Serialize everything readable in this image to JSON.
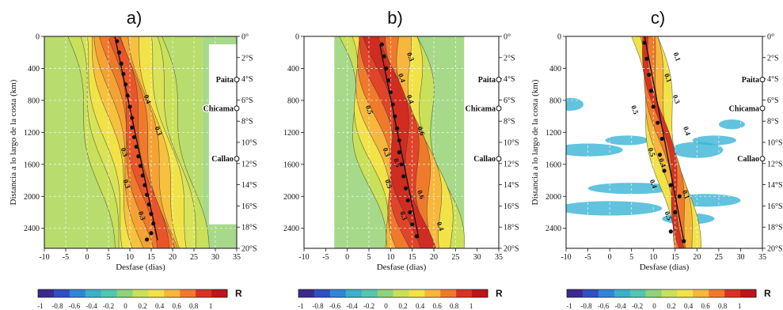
{
  "figure": {
    "colorbar": {
      "label": "R",
      "ticks": [
        "-1",
        "-0.8",
        "-0.6",
        "-0.4",
        "-0.2",
        "0",
        "0.2",
        "0.4",
        "0.6",
        "0.8",
        "1"
      ],
      "colors": [
        "#3b2a8f",
        "#2f50c2",
        "#2f86d6",
        "#3bb0c8",
        "#52c6b0",
        "#8fd27a",
        "#c8e05a",
        "#f1e248",
        "#f6b73c",
        "#f07a2c",
        "#d83222",
        "#c0141a"
      ]
    },
    "cities": [
      "Paita",
      "Chicama",
      "Callao"
    ]
  },
  "chart_data": [
    {
      "type": "heatmap",
      "title": "a)",
      "xlabel": "Desfase (dias)",
      "ylabel": "Distancia a lo largo de la costa (km)",
      "xlim": [
        -10,
        35
      ],
      "ylim": [
        2650,
        0
      ],
      "xticks": [
        "-10",
        "-5",
        "0",
        "5",
        "10",
        "15",
        "20",
        "25",
        "30",
        "35"
      ],
      "yticks": [
        "0",
        "400",
        "800",
        "1200",
        "1600",
        "2000",
        "2400"
      ],
      "right_ticks": [
        "0°",
        "2°S",
        "4°S",
        "6°S",
        "8°S",
        "10°S",
        "12°S",
        "14°S",
        "16°S",
        "18°S",
        "20°S"
      ],
      "contour_labels": [
        "0.3",
        "0.4",
        "0.3",
        "0.3",
        "0.3"
      ],
      "max_lag_points": [
        {
          "x": 7,
          "y": 60
        },
        {
          "x": 7.5,
          "y": 200
        },
        {
          "x": 8,
          "y": 340
        },
        {
          "x": 8.5,
          "y": 470
        },
        {
          "x": 9,
          "y": 600
        },
        {
          "x": 9.5,
          "y": 740
        },
        {
          "x": 10,
          "y": 880
        },
        {
          "x": 10.5,
          "y": 1020
        },
        {
          "x": 10.5,
          "y": 1140
        },
        {
          "x": 11,
          "y": 1260
        },
        {
          "x": 11.5,
          "y": 1380
        },
        {
          "x": 12,
          "y": 1500
        },
        {
          "x": 12.5,
          "y": 1620
        },
        {
          "x": 13,
          "y": 1740
        },
        {
          "x": 13.5,
          "y": 1860
        },
        {
          "x": 14,
          "y": 1980
        },
        {
          "x": 14.5,
          "y": 2100
        },
        {
          "x": 15,
          "y": 2220
        },
        {
          "x": 15.5,
          "y": 2340
        },
        {
          "x": 15,
          "y": 2460
        },
        {
          "x": 14,
          "y": 2540
        }
      ],
      "fit_line": [
        {
          "x": 6.5,
          "y": 0
        },
        {
          "x": 16.5,
          "y": 2550
        }
      ]
    },
    {
      "type": "heatmap",
      "title": "b)",
      "xlabel": "Desfase (dias)",
      "ylabel": "",
      "xlim": [
        -10,
        35
      ],
      "ylim": [
        2650,
        0
      ],
      "xticks": [
        "-10",
        "-5",
        "0",
        "5",
        "10",
        "15",
        "20",
        "25",
        "30",
        "35"
      ],
      "yticks": [
        "0",
        "400",
        "800",
        "1200",
        "1600",
        "2000",
        "2400"
      ],
      "right_ticks": [
        "0°",
        "2°S",
        "4°S",
        "6°S",
        "8°S",
        "10°S",
        "12°S",
        "14°S",
        "16°S",
        "18°S",
        "20°S"
      ],
      "contour_labels": [
        "0.3",
        "0.4",
        "0.5",
        "0.6",
        "0.3",
        "0.4",
        "0.5",
        "0.6",
        "0.3",
        "0.5",
        "0.4"
      ],
      "max_lag_points": [
        {
          "x": 8,
          "y": 100
        },
        {
          "x": 8.5,
          "y": 250
        },
        {
          "x": 9,
          "y": 400
        },
        {
          "x": 9.5,
          "y": 550
        },
        {
          "x": 10,
          "y": 700
        },
        {
          "x": 10.5,
          "y": 850
        },
        {
          "x": 11,
          "y": 1000
        },
        {
          "x": 11.5,
          "y": 1150
        },
        {
          "x": 12,
          "y": 1300
        },
        {
          "x": 12,
          "y": 1450
        },
        {
          "x": 12.5,
          "y": 1600
        },
        {
          "x": 13,
          "y": 1750
        },
        {
          "x": 13.5,
          "y": 1900
        },
        {
          "x": 14,
          "y": 2050
        },
        {
          "x": 14.5,
          "y": 2200
        },
        {
          "x": 15,
          "y": 2350
        },
        {
          "x": 16,
          "y": 2500
        }
      ],
      "fit_line": [
        {
          "x": 7.5,
          "y": 100
        },
        {
          "x": 16.5,
          "y": 2520
        }
      ]
    },
    {
      "type": "heatmap",
      "title": "c)",
      "xlabel": "Desfase (dias)",
      "ylabel": "Distancia a lo largo de la costa (km)",
      "xlim": [
        -10,
        35
      ],
      "ylim": [
        2650,
        0
      ],
      "xticks": [
        "-10",
        "-5",
        "0",
        "5",
        "10",
        "15",
        "20",
        "25",
        "30",
        "35"
      ],
      "yticks": [
        "0",
        "400",
        "800",
        "1200",
        "1600",
        "2000",
        "2400"
      ],
      "right_ticks": [
        "0°",
        "2°S",
        "4°S",
        "6°S",
        "8°S",
        "10°S",
        "12°S",
        "14°S",
        "16°S",
        "18°S",
        "20°S"
      ],
      "contour_labels": [
        "0.5",
        "0.3",
        "0.4",
        "0.4",
        "0.5",
        "0.1",
        "0.4",
        "0.1",
        "0.1",
        "0.5"
      ],
      "max_lag_points": [
        {
          "x": 8,
          "y": 80
        },
        {
          "x": 8.5,
          "y": 280
        },
        {
          "x": 9,
          "y": 480
        },
        {
          "x": 9.5,
          "y": 680
        },
        {
          "x": 10,
          "y": 880
        },
        {
          "x": 11,
          "y": 1080
        },
        {
          "x": 12,
          "y": 1280
        },
        {
          "x": 11.5,
          "y": 1480
        },
        {
          "x": 12.5,
          "y": 1680
        },
        {
          "x": 14,
          "y": 1860
        },
        {
          "x": 16,
          "y": 2000
        },
        {
          "x": 15,
          "y": 2200
        },
        {
          "x": 14,
          "y": 2440
        },
        {
          "x": 17,
          "y": 2560
        }
      ],
      "fit_line": [
        {
          "x": 8,
          "y": 0
        },
        {
          "x": 17,
          "y": 2560
        }
      ]
    }
  ]
}
